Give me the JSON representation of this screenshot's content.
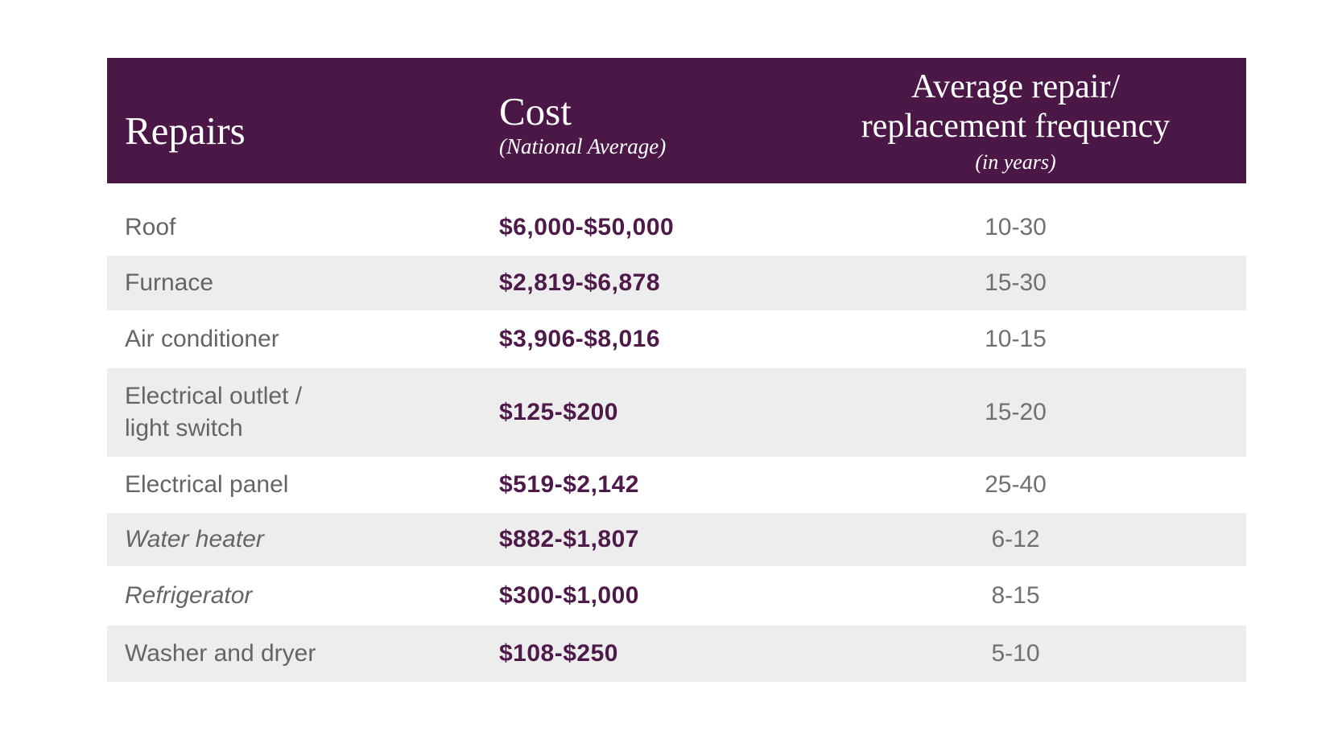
{
  "colors": {
    "header_background": "#4a1747",
    "header_text": "#ffffff",
    "cost_text": "#4d1a4a",
    "label_text": "#636568",
    "frequency_text": "#6e7072",
    "alternate_row_background": "#ededed",
    "page_background": "#ffffff"
  },
  "table": {
    "header": {
      "repairs": "Repairs",
      "cost_title": "Cost",
      "cost_subtitle": "(National Average)",
      "freq_line1": "Average repair/",
      "freq_line2": "replacement frequency",
      "freq_subtitle": "(in years)"
    },
    "rows": [
      {
        "repair": "Roof",
        "cost": "$6,000-$50,000",
        "frequency": "10-30"
      },
      {
        "repair": "Furnace",
        "cost": "$2,819-$6,878",
        "frequency": "15-30"
      },
      {
        "repair": "Air conditioner",
        "cost": "$3,906-$8,016",
        "frequency": "10-15"
      },
      {
        "repair": "Electrical outlet /\nlight switch",
        "cost": "$125-$200",
        "frequency": "15-20"
      },
      {
        "repair": "Electrical panel",
        "cost": "$519-$2,142",
        "frequency": "25-40"
      },
      {
        "repair": "Water heater",
        "cost": "$882-$1,807",
        "frequency": "6-12"
      },
      {
        "repair": "Refrigerator",
        "cost": "$300-$1,000",
        "frequency": "8-15"
      },
      {
        "repair": "Washer and dryer",
        "cost": "$108-$250",
        "frequency": "5-10"
      }
    ]
  }
}
